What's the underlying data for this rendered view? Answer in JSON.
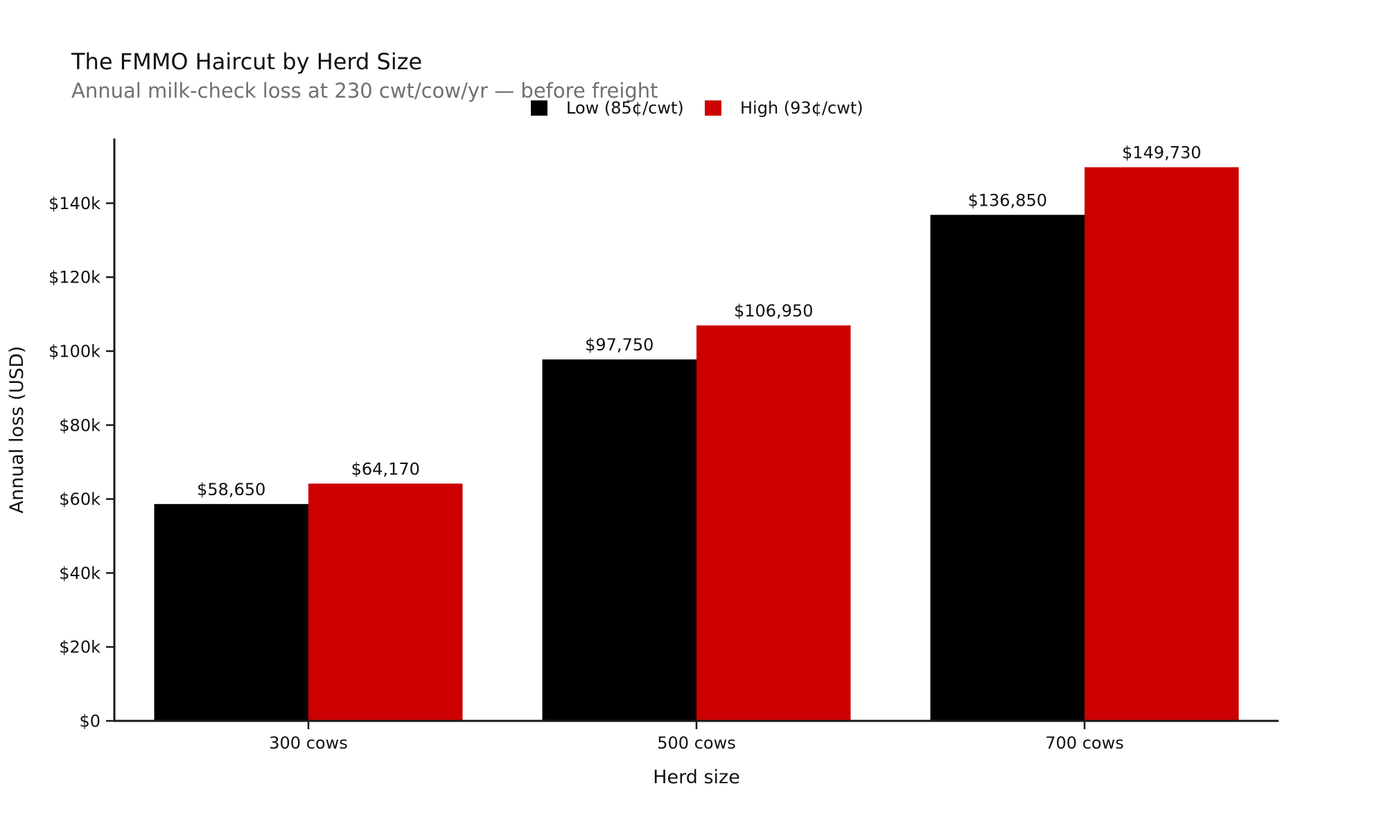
{
  "header": {
    "title": "The FMMO Haircut by Herd Size",
    "subtitle": "Annual milk-check loss at 230 cwt/cow/yr — before freight"
  },
  "chart_data": {
    "type": "bar",
    "title": "The FMMO Haircut by Herd Size",
    "subtitle": "Annual milk-check loss at 230 cwt/cow/yr — before freight",
    "xlabel": "Herd size",
    "ylabel": "Annual loss (USD)",
    "categories": [
      "300 cows",
      "500 cows",
      "700 cows"
    ],
    "series": [
      {
        "name": "Low (85¢/cwt)",
        "color": "#000000",
        "values": [
          58650,
          97750,
          136850
        ],
        "value_labels": [
          "$58,650",
          "$97,750",
          "$136,850"
        ]
      },
      {
        "name": "High (93¢/cwt)",
        "color": "#cc0000",
        "values": [
          64170,
          106950,
          149730
        ],
        "value_labels": [
          "$64,170",
          "$106,950",
          "$149,730"
        ]
      }
    ],
    "yticks": [
      0,
      20000,
      40000,
      60000,
      80000,
      100000,
      120000,
      140000
    ],
    "ytick_labels": [
      "$0",
      "$20k",
      "$40k",
      "$60k",
      "$80k",
      "$100k",
      "$120k",
      "$140k"
    ],
    "ylim": [
      0,
      157500
    ],
    "grid": false,
    "legend_position": "top-center above plot, no frame",
    "bar_colors": {
      "low": "#000000",
      "high": "#cc0000"
    }
  }
}
